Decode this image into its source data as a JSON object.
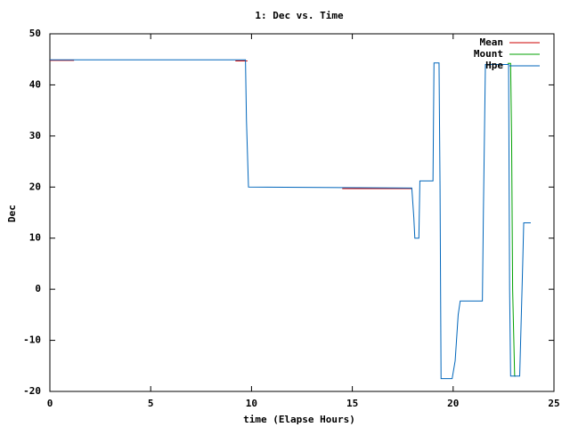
{
  "chart_data": {
    "type": "line",
    "title": "1: Dec vs. Time",
    "x_label": "time (Elapse Hours)",
    "y_label": "Dec",
    "xlim": [
      0,
      25
    ],
    "xticks": [
      0,
      5,
      10,
      15,
      20,
      25
    ],
    "ylim": [
      -20,
      50
    ],
    "yticks": [
      -20,
      -10,
      0,
      10,
      20,
      30,
      40,
      50
    ],
    "legend": "top-right",
    "series": [
      {
        "name": "Mean",
        "color": "#cc0000",
        "x": [
          0,
          1.2,
          1.21,
          9.2,
          9.8,
          9.81,
          14.5,
          17.95
        ],
        "values": [
          44.8,
          44.8,
          null,
          44.7,
          44.7,
          null,
          19.7,
          19.7
        ]
      },
      {
        "name": "Mount",
        "color": "#00a000",
        "x": [
          22.7,
          22.85,
          22.9,
          22.95,
          23.05,
          23.1
        ],
        "values": [
          44.2,
          44.2,
          29,
          0,
          -17,
          -17
        ]
      },
      {
        "name": "Hpe",
        "color": "#0066bb",
        "x": [
          0,
          9.7,
          9.75,
          9.85,
          17.95,
          18.05,
          18.1,
          18.3,
          18.35,
          19.0,
          19.05,
          19.3,
          19.35,
          19.4,
          19.95,
          20.1,
          20.25,
          20.35,
          21.45,
          21.5,
          21.6,
          22.75,
          22.8,
          22.85,
          22.9,
          23.3,
          23.45,
          23.5,
          23.85
        ],
        "values": [
          44.9,
          44.9,
          33,
          20,
          19.8,
          14,
          10,
          10,
          21.2,
          21.2,
          44.3,
          44.3,
          20,
          -17.5,
          -17.5,
          -14,
          -5,
          -2.3,
          -2.3,
          15,
          44,
          44,
          0,
          -17,
          -17,
          -17,
          5,
          13,
          13
        ]
      }
    ]
  }
}
